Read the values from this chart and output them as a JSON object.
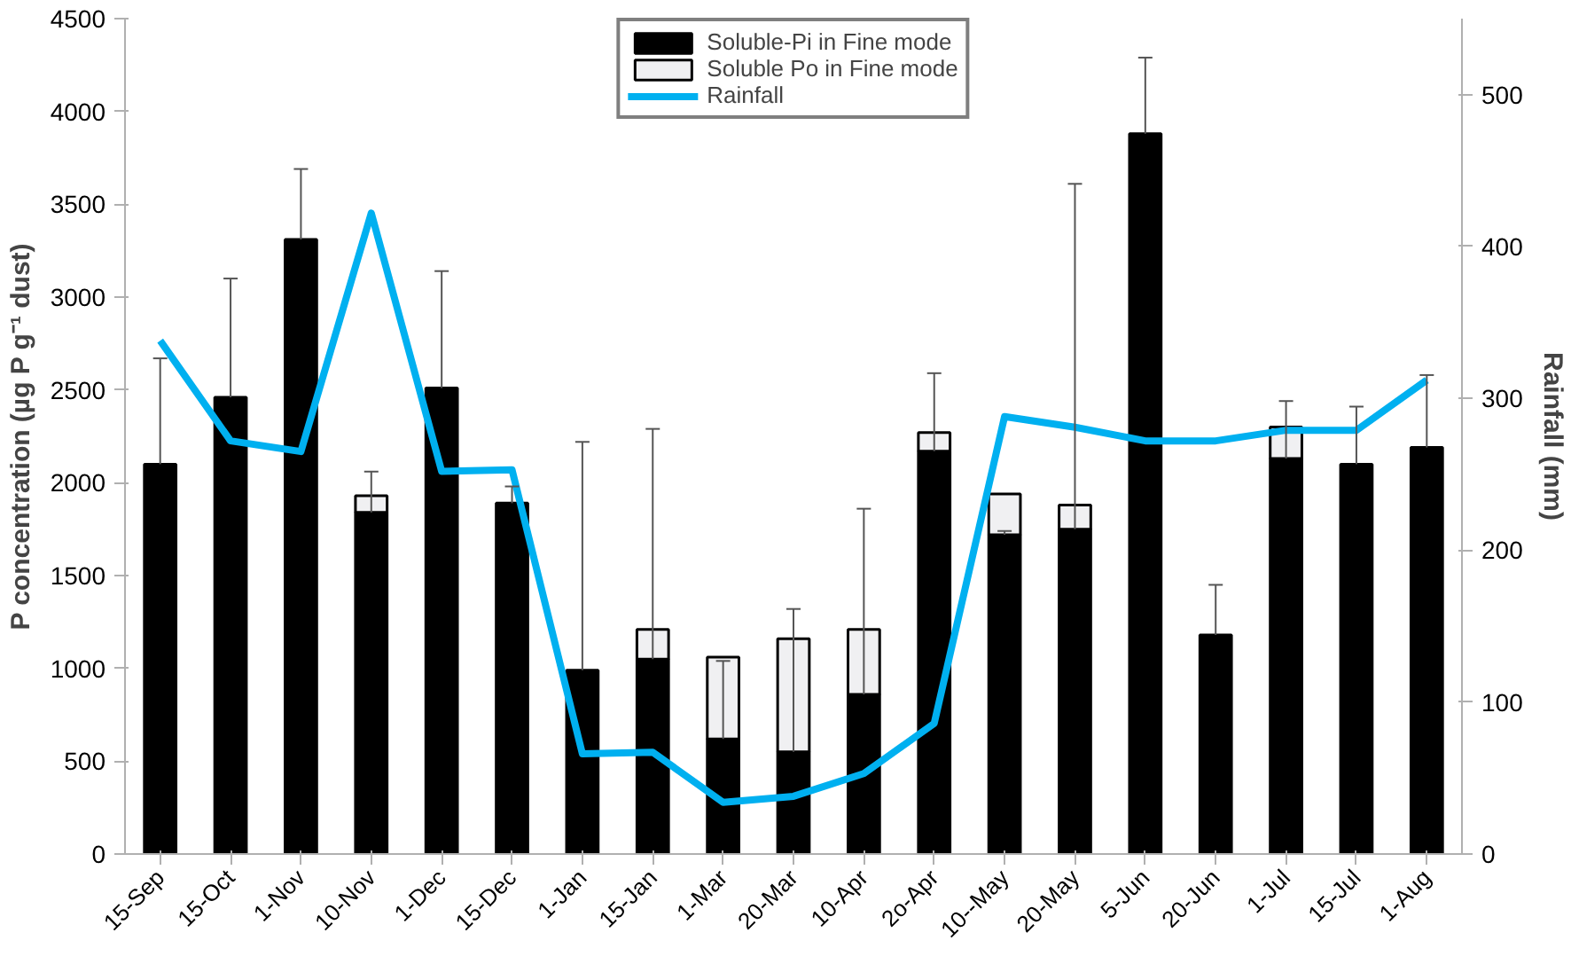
{
  "chart_data": {
    "type": "bar",
    "stacked": true,
    "ylabel": "P concentration (µg P g⁻¹ dust)",
    "y2label": "Rainfall (mm)",
    "categories": [
      "15-Sep",
      "15-Oct",
      "1-Nov",
      "10-Nov",
      "1-Dec",
      "15-Dec",
      "1-Jan",
      "15-Jan",
      "1-Mar",
      "20-Mar",
      "10-Apr",
      "2o-Apr",
      "10--May",
      "20-May",
      "5-Jun",
      "20-Jun",
      "1-Jul",
      "15-Jul",
      "1-Aug"
    ],
    "series": [
      {
        "name": "Soluble-Pi in Fine mode",
        "color": "#000000",
        "values": [
          2100,
          2460,
          3310,
          1840,
          2510,
          1890,
          990,
          1050,
          620,
          550,
          860,
          2170,
          1720,
          1750,
          3880,
          1180,
          2130,
          2100,
          2190
        ],
        "errors": [
          [
            2100,
            2670
          ],
          [
            2460,
            3100
          ],
          [
            3310,
            3690
          ],
          [
            1840,
            2060
          ],
          [
            2510,
            3140
          ],
          [
            1890,
            1980
          ],
          [
            990,
            2220
          ],
          [
            1050,
            2290
          ],
          [
            620,
            1040
          ],
          [
            550,
            1320
          ],
          [
            860,
            1860
          ],
          [
            2170,
            2590
          ],
          [
            1720,
            1740
          ],
          [
            1750,
            3610
          ],
          [
            3880,
            4290
          ],
          [
            1180,
            1450
          ],
          [
            2130,
            2440
          ],
          [
            2100,
            2410
          ],
          [
            2190,
            2580
          ]
        ]
      },
      {
        "name": "Soluble Po in Fine mode",
        "color": "#f0f0f2",
        "values": [
          null,
          null,
          null,
          90,
          null,
          null,
          null,
          160,
          440,
          610,
          350,
          100,
          220,
          130,
          null,
          null,
          170,
          null,
          null
        ]
      },
      {
        "name": "Rainfall",
        "type": "line",
        "axis": "y2",
        "color": "#00b0f0",
        "values": [
          338,
          272,
          265,
          422,
          252,
          253,
          66,
          67,
          34,
          38,
          53,
          86,
          288,
          281,
          272,
          272,
          279,
          279,
          312
        ]
      }
    ],
    "ylim": [
      0,
      4500
    ],
    "yticks": [
      0,
      500,
      1000,
      1500,
      2000,
      2500,
      3000,
      3500,
      4000,
      4500
    ],
    "y2lim": [
      0,
      550
    ],
    "y2ticks": [
      0,
      100,
      200,
      300,
      400,
      500
    ],
    "grid": false,
    "legend": "top"
  }
}
